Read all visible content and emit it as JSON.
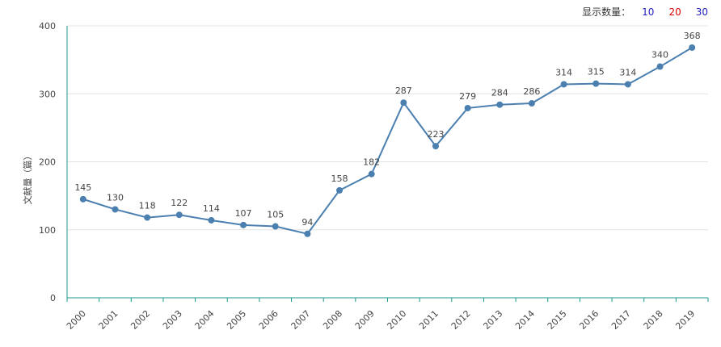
{
  "controls": {
    "label": "显示数量：",
    "options": [
      "10",
      "20",
      "30"
    ]
  },
  "colors": {
    "line": "#4a7fb0",
    "axis": "#1a9a8a",
    "grid": "#e3e3e3"
  },
  "chart_data": {
    "type": "line",
    "title": "",
    "xlabel": "",
    "ylabel": "文献量（篇）",
    "ylim": [
      0,
      400
    ],
    "yticks": [
      0,
      100,
      200,
      300,
      400
    ],
    "grid": true,
    "x": [
      "2000",
      "2001",
      "2002",
      "2003",
      "2004",
      "2005",
      "2006",
      "2007",
      "2008",
      "2009",
      "2010",
      "2011",
      "2012",
      "2013",
      "2014",
      "2015",
      "2016",
      "2017",
      "2018",
      "2019"
    ],
    "values": [
      145,
      130,
      118,
      122,
      114,
      107,
      105,
      94,
      158,
      182,
      287,
      223,
      279,
      284,
      286,
      314,
      315,
      314,
      340,
      368
    ]
  }
}
